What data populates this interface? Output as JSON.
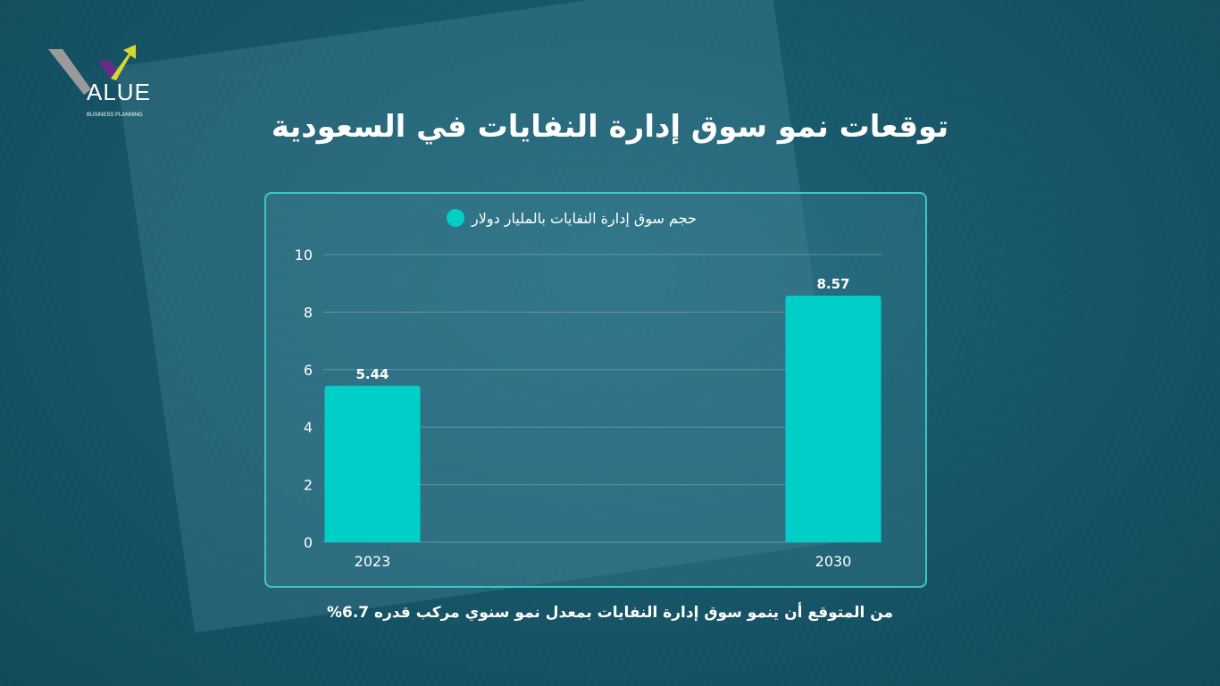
{
  "title": "توقعات نمو سوق إدارة النفايات في  السعودية",
  "logo": {
    "text": "ALUE",
    "subtitle": "BUSINESS PLANNING"
  },
  "footer": "من المتوقع أن ينمو سوق إدارة النفايات بمعدل نمو سنوي مركب قدره 6.7%",
  "colors": {
    "bar": "#00cfc8",
    "background": "#165567",
    "panel_border": "#3fc7c7"
  },
  "chart_data": {
    "type": "bar",
    "title": "",
    "legend": [
      "حجم سوق إدارة النفايات بالمليار دولار"
    ],
    "legend_position": "top",
    "categories": [
      "2023",
      "2030"
    ],
    "values": [
      5.44,
      8.57
    ],
    "data_labels": [
      "5.44",
      "8.57"
    ],
    "ylim": [
      0,
      10
    ],
    "yticks": [
      "0",
      "2",
      "4",
      "6",
      "8",
      "10"
    ],
    "grid": true,
    "xlabel": "",
    "ylabel": ""
  }
}
